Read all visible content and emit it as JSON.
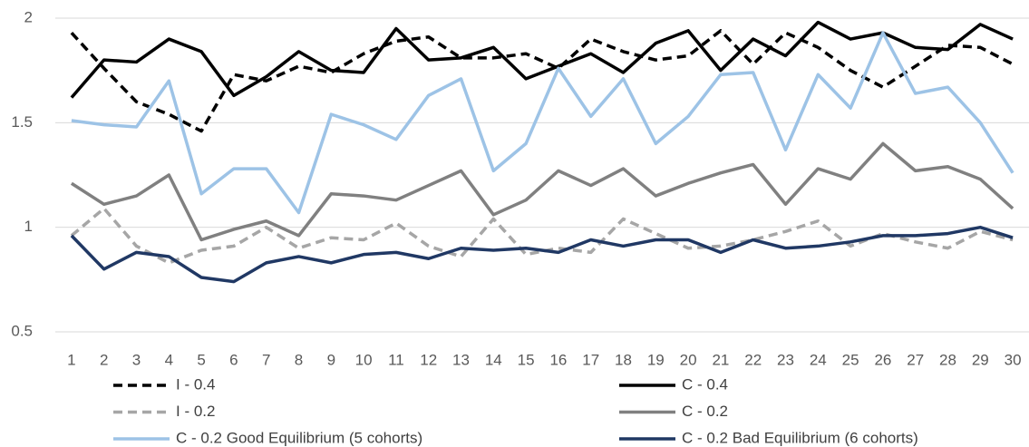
{
  "chart_data": {
    "type": "line",
    "categories": [
      "1",
      "2",
      "3",
      "4",
      "5",
      "6",
      "7",
      "8",
      "9",
      "10",
      "11",
      "12",
      "13",
      "14",
      "15",
      "16",
      "17",
      "18",
      "19",
      "20",
      "21",
      "22",
      "23",
      "24",
      "25",
      "26",
      "27",
      "28",
      "29",
      "30"
    ],
    "ylim": [
      0.5,
      2
    ],
    "yticks": [
      0.5,
      1,
      1.5,
      2
    ],
    "grid": true,
    "series": [
      {
        "name": "I - 0.4",
        "color": "#000000",
        "dash": true,
        "values": [
          1.93,
          1.76,
          1.6,
          1.54,
          1.46,
          1.73,
          1.7,
          1.77,
          1.74,
          1.83,
          1.89,
          1.91,
          1.81,
          1.81,
          1.83,
          1.76,
          1.9,
          1.84,
          1.8,
          1.82,
          1.94,
          1.78,
          1.93,
          1.86,
          1.75,
          1.67,
          1.77,
          1.87,
          1.86,
          1.78
        ]
      },
      {
        "name": "C - 0.4",
        "color": "#000000",
        "dash": false,
        "values": [
          1.62,
          1.8,
          1.79,
          1.9,
          1.84,
          1.63,
          1.72,
          1.84,
          1.75,
          1.74,
          1.95,
          1.8,
          1.81,
          1.86,
          1.71,
          1.77,
          1.83,
          1.74,
          1.88,
          1.94,
          1.75,
          1.9,
          1.82,
          1.98,
          1.9,
          1.93,
          1.86,
          1.85,
          1.97,
          1.9
        ]
      },
      {
        "name": "I - 0.2",
        "color": "#a6a6a6",
        "dash": true,
        "values": [
          0.96,
          1.09,
          0.91,
          0.83,
          0.89,
          0.91,
          1.0,
          0.9,
          0.95,
          0.94,
          1.02,
          0.91,
          0.86,
          1.04,
          0.87,
          0.9,
          0.88,
          1.04,
          0.97,
          0.9,
          0.91,
          0.94,
          0.98,
          1.03,
          0.91,
          0.97,
          0.93,
          0.9,
          0.98,
          0.94
        ]
      },
      {
        "name": "C - 0.2",
        "color": "#808080",
        "dash": false,
        "values": [
          1.21,
          1.11,
          1.15,
          1.25,
          0.94,
          0.99,
          1.03,
          0.96,
          1.16,
          1.15,
          1.13,
          1.2,
          1.27,
          1.06,
          1.13,
          1.27,
          1.2,
          1.28,
          1.15,
          1.21,
          1.26,
          1.3,
          1.11,
          1.28,
          1.23,
          1.4,
          1.27,
          1.29,
          1.23,
          1.09
        ]
      },
      {
        "name": "C - 0.2 Good Equilibrium (5 cohorts)",
        "color": "#9dc3e6",
        "dash": false,
        "values": [
          1.51,
          1.49,
          1.48,
          1.7,
          1.16,
          1.28,
          1.28,
          1.07,
          1.54,
          1.49,
          1.42,
          1.63,
          1.71,
          1.27,
          1.4,
          1.76,
          1.53,
          1.71,
          1.4,
          1.53,
          1.73,
          1.74,
          1.37,
          1.73,
          1.57,
          1.93,
          1.64,
          1.67,
          1.5,
          1.26
        ]
      },
      {
        "name": "C - 0.2 Bad Equilibrium (6 cohorts)",
        "color": "#203864",
        "dash": false,
        "values": [
          0.96,
          0.8,
          0.88,
          0.86,
          0.76,
          0.74,
          0.83,
          0.86,
          0.83,
          0.87,
          0.88,
          0.85,
          0.9,
          0.89,
          0.9,
          0.88,
          0.94,
          0.91,
          0.94,
          0.94,
          0.88,
          0.94,
          0.9,
          0.91,
          0.93,
          0.96,
          0.96,
          0.97,
          1.0,
          0.95
        ]
      }
    ]
  }
}
